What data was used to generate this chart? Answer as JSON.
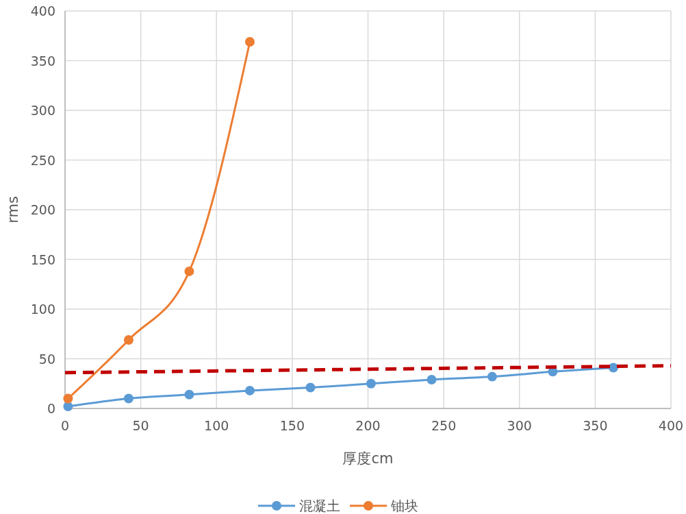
{
  "chart_data": {
    "type": "line",
    "xlabel": "厚度cm",
    "ylabel": "rms",
    "xlim": [
      0,
      400
    ],
    "xticks": [
      0,
      50,
      100,
      150,
      200,
      250,
      300,
      350,
      400
    ],
    "ylim": [
      0,
      400
    ],
    "yticks": [
      0,
      50,
      100,
      150,
      200,
      250,
      300,
      350,
      400
    ],
    "grid": true,
    "legend": "bottom",
    "marker": "circle",
    "series": [
      {
        "name": "混凝土",
        "color": "#5b9bd5",
        "x": [
          2,
          42,
          82,
          122,
          162,
          202,
          242,
          282,
          322,
          362
        ],
        "values": [
          2,
          10,
          14,
          18,
          21,
          25,
          29,
          32,
          37,
          41
        ]
      },
      {
        "name": "铀块",
        "color": "#ed7d31",
        "x": [
          2,
          42,
          82,
          122
        ],
        "values": [
          10,
          69,
          138,
          369
        ]
      },
      {
        "color": "#c00000",
        "x": [
          0,
          400
        ],
        "values": [
          36,
          43
        ],
        "marker": "none",
        "line_style": "dashed"
      }
    ]
  }
}
